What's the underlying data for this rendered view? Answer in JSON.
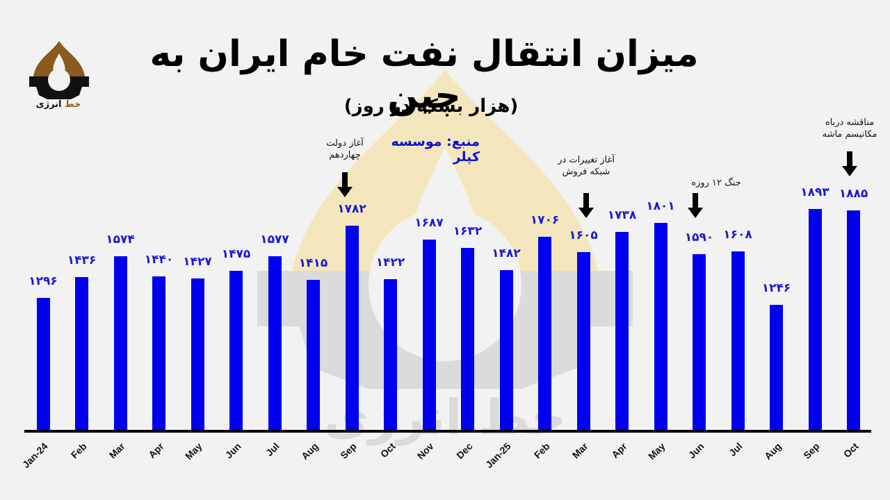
{
  "header": {
    "title": "میزان انتقال نفت خام ایران به چین",
    "subtitle": "(هزار بشکه در روز)",
    "source": "منبع: موسسه کپلر"
  },
  "logo": {
    "text_accent": "خط",
    "text_main": "انرژی"
  },
  "annotations": [
    {
      "text": "آغاز دولت\nچهاردهم",
      "category_index": 8
    },
    {
      "text": "آغاز تغییرات در\nشبکه فروش",
      "category_index": 14
    },
    {
      "text": "جنگ ۱۲ روزه",
      "category_index": 17
    },
    {
      "text": "مناقشه درباه\nمکانیسم ماشه",
      "category_index": 21
    }
  ],
  "colors": {
    "bar": "#0000f0",
    "value_label": "#1a1ad0",
    "background": "#f2f2f2",
    "axis": "#000000"
  },
  "chart_data": {
    "type": "bar",
    "title": "میزان انتقال نفت خام ایران به چین",
    "subtitle": "(هزار بشکه در روز)",
    "source": "منبع: موسسه کپلر",
    "xlabel": "",
    "ylabel": "هزار بشکه در روز",
    "categories": [
      "Jan-24",
      "Feb",
      "Mar",
      "Apr",
      "May",
      "Jun",
      "Jul",
      "Aug",
      "Sep",
      "Oct",
      "Nov",
      "Dec",
      "Jan-25",
      "Feb",
      "Mar",
      "Apr",
      "May",
      "Jun",
      "Jul",
      "Aug",
      "Sep",
      "Oct"
    ],
    "values": [
      1296,
      1436,
      1574,
      1440,
      1427,
      1475,
      1577,
      1415,
      1782,
      1422,
      1687,
      1632,
      1482,
      1706,
      1605,
      1738,
      1801,
      1590,
      1608,
      1246,
      1893,
      1885
    ],
    "value_labels": [
      "۱۲۹۶",
      "۱۴۳۶",
      "۱۵۷۴",
      "۱۴۴۰",
      "۱۴۲۷",
      "۱۴۷۵",
      "۱۵۷۷",
      "۱۴۱۵",
      "۱۷۸۲",
      "۱۴۲۲",
      "۱۶۸۷",
      "۱۶۳۲",
      "۱۴۸۲",
      "۱۷۰۶",
      "۱۶۰۵",
      "۱۷۳۸",
      "۱۸۰۱",
      "۱۵۹۰",
      "۱۶۰۸",
      "۱۲۴۶",
      "۱۸۹۳",
      "۱۸۸۵"
    ],
    "ylim": [
      400,
      2000
    ],
    "grid": false,
    "legend": "none",
    "annotations": [
      {
        "category": "Sep (2024)",
        "text": "آغاز دولت چهاردهم"
      },
      {
        "category": "Mar (2025)",
        "text": "آغاز تغییرات در شبکه فروش"
      },
      {
        "category": "Jun (2025)",
        "text": "جنگ ۱۲ روزه"
      },
      {
        "category": "Oct (2025)",
        "text": "مناقشه درباه مکانیسم ماشه"
      }
    ]
  }
}
